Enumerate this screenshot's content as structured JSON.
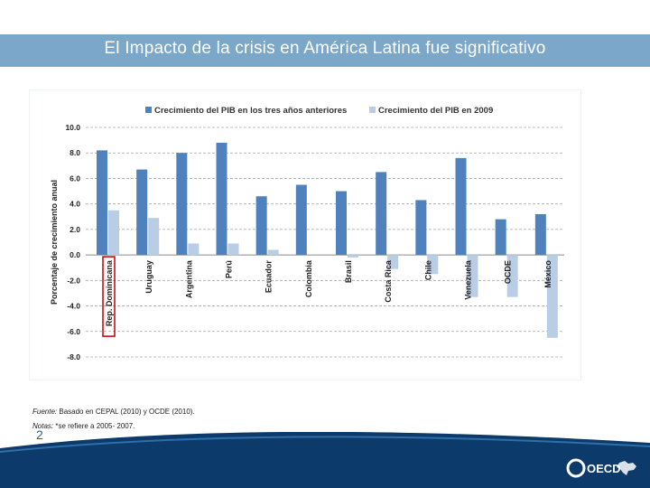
{
  "slide": {
    "title": "El Impacto de la crisis en América Latina fue significativo",
    "page_number": "2",
    "source_label": "Fuente:",
    "source_text": " Basado en CEPAL (2010) y OCDE (2010).",
    "notes_label": "Notas:",
    "notes_text": " *se refiere a 2005- 2007.",
    "logo_text": "OECD"
  },
  "colors": {
    "title_bar": "#7ba7c8",
    "series_dark": "#4f81bd",
    "series_light": "#b9cde5",
    "highlight_box": "#c00000",
    "footer": "#0b3a6b"
  },
  "chart_data": {
    "type": "bar",
    "title": "",
    "xlabel": "",
    "ylabel": "Porcentaje de crecimiento anual",
    "ylim": [
      -8.0,
      10.0
    ],
    "yticks": [
      "10.0",
      "8.0",
      "6.0",
      "4.0",
      "2.0",
      "0.0",
      "-2.0",
      "-4.0",
      "-6.0",
      "-8.0"
    ],
    "grid": true,
    "legend_position": "top",
    "categories": [
      "Rep. Dominicana",
      "Uruguay",
      "Argentina",
      "Perú",
      "Ecuador",
      "Colombia",
      "Brasil",
      "Costa Rica",
      "Chile",
      "Venezuela",
      "OCDE",
      "México"
    ],
    "highlighted_category": "Rep. Dominicana",
    "series": [
      {
        "name": "Crecimiento del PIB en los tres años anteriores",
        "values": [
          8.2,
          6.7,
          8.0,
          8.8,
          4.6,
          5.5,
          5.0,
          6.5,
          4.3,
          7.6,
          2.8,
          3.2
        ]
      },
      {
        "name": "Crecimiento del PIB en 2009",
        "values": [
          3.5,
          2.9,
          0.9,
          0.9,
          0.4,
          0.0,
          -0.2,
          -1.1,
          -1.5,
          -3.3,
          -3.3,
          -6.5
        ]
      }
    ]
  }
}
